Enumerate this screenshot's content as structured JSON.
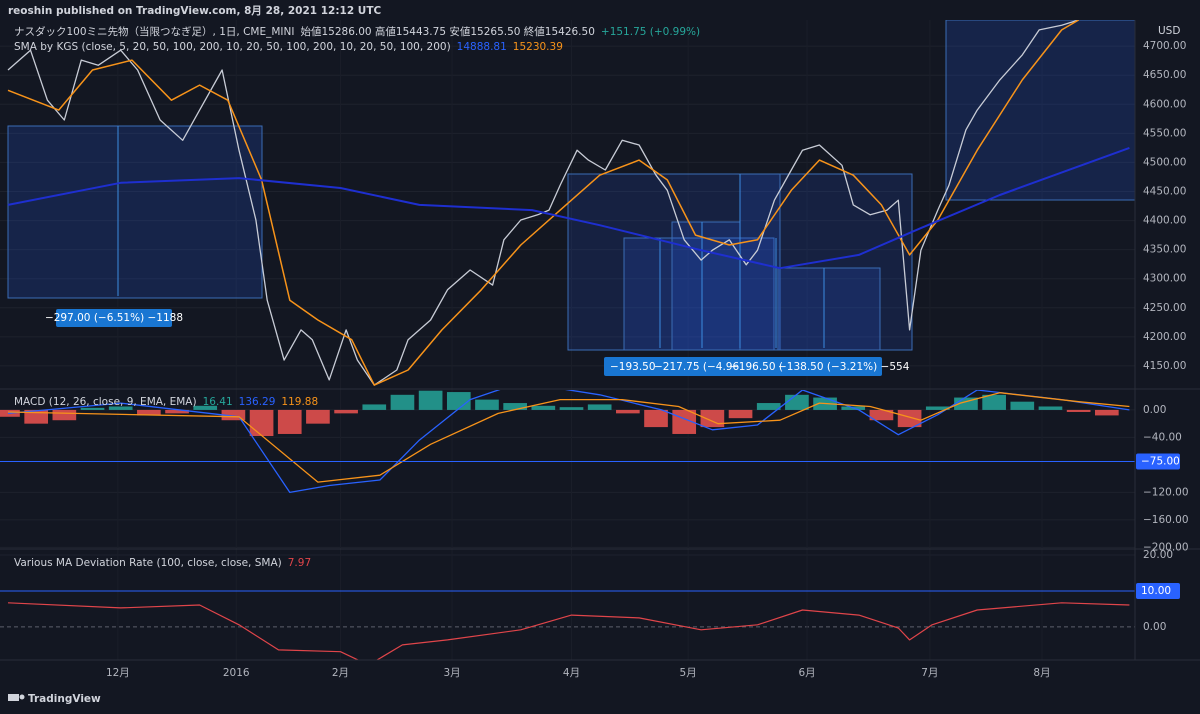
{
  "header": {
    "publisher": "reoshin published on TradingView.com, 8月 28, 2021 12:12 UTC",
    "footer": "TradingView"
  },
  "chart_data": [
    {
      "type": "line",
      "title": "ナスダック100ミニ先物（当限つなぎ足）, 1日, CME_MINI",
      "quote": "始値15286.00 高値15443.75 安値15265.50 終値15426.50",
      "change": "+151.75 (+0.99%)",
      "indicator": "SMA by KGS (close, 5, 20, 50, 100, 200, 10, 20, 50, 100, 200, 10, 20, 50, 100, 200)",
      "indicator_values": [
        "14888.81",
        "15230.39"
      ],
      "currency": "USD",
      "xlim": [
        0,
        200
      ],
      "ylim": [
        4112,
        4745
      ],
      "yticks": [
        {
          "value": 4150,
          "label": "4150.00"
        },
        {
          "value": 4200,
          "label": "4200.00"
        },
        {
          "value": 4250,
          "label": "4250.00"
        },
        {
          "value": 4300,
          "label": "4300.00"
        },
        {
          "value": 4350,
          "label": "4350.00"
        },
        {
          "value": 4400,
          "label": "4400.00"
        },
        {
          "value": 4450,
          "label": "4450.00"
        },
        {
          "value": 4500,
          "label": "4500.00"
        },
        {
          "value": 4550,
          "label": "4550.00"
        },
        {
          "value": 4600,
          "label": "4600.00"
        },
        {
          "value": 4650,
          "label": "4650.00"
        },
        {
          "value": 4700,
          "label": "4700.00"
        }
      ],
      "annotations": [
        "−297.00 (−6.51%) −1188",
        "−193.50",
        "−217.75 (−4.96",
        "−196.50 (",
        "−138.50 (−3.21%) −554"
      ],
      "series": [
        {
          "type": "line",
          "color": "#c8ccd6",
          "width": 1.3,
          "x": [
            0,
            4,
            7,
            10,
            13,
            16,
            20,
            23,
            27,
            31,
            34,
            38,
            41,
            44,
            46,
            49,
            52,
            54,
            57,
            60,
            62,
            65,
            69,
            71,
            75,
            78,
            82,
            86,
            88,
            91,
            94,
            96,
            98,
            101,
            103,
            106,
            109,
            112,
            115,
            117,
            120,
            123,
            125,
            128,
            131,
            133,
            136,
            139,
            141,
            144,
            148,
            150,
            153,
            156,
            158,
            160,
            162,
            165,
            167,
            170,
            172,
            176,
            180,
            183,
            187,
            190
          ],
          "values": [
            4659,
            4693,
            4607,
            4573,
            4676,
            4667,
            4693,
            4659,
            4573,
            4538,
            4590,
            4659,
            4521,
            4401,
            4263,
            4160,
            4212,
            4195,
            4126,
            4212,
            4160,
            4117,
            4143,
            4195,
            4229,
            4281,
            4315,
            4289,
            4367,
            4401,
            4410,
            4418,
            4461,
            4521,
            4504,
            4487,
            4538,
            4530,
            4478,
            4452,
            4367,
            4332,
            4349,
            4367,
            4324,
            4349,
            4435,
            4487,
            4521,
            4530,
            4495,
            4427,
            4410,
            4418,
            4435,
            4212,
            4349,
            4418,
            4461,
            4556,
            4590,
            4642,
            4685,
            4728,
            4736,
            4745
          ]
        },
        {
          "type": "line",
          "color": "#f7931a",
          "width": 1.5,
          "x": [
            0,
            9,
            15,
            22,
            29,
            34,
            39,
            45,
            50,
            55,
            61,
            65,
            71,
            77,
            84,
            91,
            98,
            105,
            112,
            117,
            122,
            128,
            133,
            139,
            144,
            150,
            155,
            160,
            165,
            172,
            180,
            187,
            190
          ],
          "values": [
            4624,
            4590,
            4659,
            4676,
            4607,
            4633,
            4607,
            4470,
            4263,
            4229,
            4195,
            4117,
            4143,
            4212,
            4281,
            4358,
            4418,
            4478,
            4504,
            4470,
            4375,
            4358,
            4367,
            4452,
            4504,
            4478,
            4427,
            4341,
            4401,
            4521,
            4642,
            4728,
            4745
          ]
        },
        {
          "type": "line",
          "color": "#1e2fd0",
          "width": 2,
          "x": [
            0,
            20,
            41,
            59,
            73,
            93,
            105,
            123,
            137,
            151,
            162,
            176,
            199
          ],
          "values": [
            4427,
            4465,
            4473,
            4456,
            4427,
            4418,
            4392,
            4349,
            4318,
            4341,
            4387,
            4444,
            4525
          ]
        }
      ]
    },
    {
      "type": "line",
      "title": "MACD (12, 26, close, 9, EMA, EMA)",
      "indicator_values": [
        "16.41",
        "136.29",
        "119.88"
      ],
      "xlim": [
        0,
        200
      ],
      "ylim": [
        -201,
        29
      ],
      "yticks": [
        {
          "value": 0,
          "label": "0.00"
        },
        {
          "value": -40,
          "label": "−40.00"
        },
        {
          "value": -120,
          "label": "−120.00"
        },
        {
          "value": -160,
          "label": "−160.00"
        },
        {
          "value": -200,
          "label": "−200.00"
        }
      ],
      "hlines": [
        {
          "value": -75,
          "label": "−75.00",
          "color": "#2962ff"
        }
      ],
      "series": [
        {
          "type": "bar",
          "color": "#26a69a",
          "negative_color": "#ef5350",
          "x": [
            0,
            5,
            10,
            15,
            20,
            25,
            30,
            35,
            40,
            45,
            50,
            55,
            60,
            65,
            70,
            75,
            80,
            85,
            90,
            95,
            100,
            105,
            110,
            115,
            120,
            125,
            130,
            135,
            140,
            145,
            150,
            155,
            160,
            165,
            170,
            175,
            180,
            185,
            190,
            195
          ],
          "values": [
            -10,
            -20,
            -15,
            3,
            5,
            -8,
            -5,
            6,
            -15,
            -38,
            -35,
            -20,
            -5,
            8,
            22,
            28,
            26,
            15,
            10,
            6,
            4,
            8,
            -5,
            -25,
            -35,
            -25,
            -12,
            10,
            22,
            18,
            5,
            -15,
            -25,
            5,
            18,
            22,
            12,
            5,
            -3,
            -8
          ]
        },
        {
          "type": "line",
          "color": "#2962ff",
          "width": 1.3,
          "x": [
            0,
            20,
            41,
            50,
            57,
            66,
            73,
            82,
            91,
            105,
            116,
            125,
            133,
            141,
            151,
            158,
            165,
            172,
            187,
            199
          ],
          "values": [
            -5,
            10,
            -10,
            -120,
            -110,
            -102,
            -44,
            15,
            40,
            22,
            0,
            -29,
            -22,
            29,
            0,
            -36,
            -7,
            29,
            15,
            0
          ]
        },
        {
          "type": "line",
          "color": "#f7931a",
          "width": 1.3,
          "x": [
            0,
            41,
            55,
            66,
            75,
            87,
            98,
            109,
            119,
            126,
            137,
            144,
            153,
            162,
            169,
            176,
            190,
            199
          ],
          "values": [
            -3,
            -10,
            -105,
            -95,
            -50,
            -5,
            15,
            15,
            5,
            -20,
            -15,
            10,
            5,
            -15,
            10,
            25,
            12,
            5
          ]
        }
      ]
    },
    {
      "type": "line",
      "title": "Various MA Deviation Rate (100, close, close, SMA)",
      "indicator_values": [
        "7.97"
      ],
      "xlim": [
        0,
        200
      ],
      "ylim": [
        -9.2,
        21.4
      ],
      "yticks": [
        {
          "value": 20,
          "label": "20.00"
        },
        {
          "value": 0,
          "label": "0.00"
        }
      ],
      "hlines": [
        {
          "value": 10,
          "label": "10.00",
          "color": "#2962ff"
        }
      ],
      "xticks": [
        {
          "value": 19.5,
          "label": "12月"
        },
        {
          "value": 40.5,
          "label": "2016"
        },
        {
          "value": 59,
          "label": "2月"
        },
        {
          "value": 78.8,
          "label": "3月"
        },
        {
          "value": 100,
          "label": "4月"
        },
        {
          "value": 120.7,
          "label": "5月"
        },
        {
          "value": 141.8,
          "label": "6月"
        },
        {
          "value": 163.6,
          "label": "7月"
        },
        {
          "value": 183.5,
          "label": "8月"
        }
      ],
      "series": [
        {
          "type": "line",
          "color": "#e0454a",
          "width": 1.2,
          "x": [
            0,
            20,
            34,
            41,
            48,
            59,
            64,
            70,
            78,
            91,
            100,
            112,
            123,
            133,
            141,
            151,
            158,
            160,
            164,
            172,
            187,
            199
          ],
          "values": [
            6.7,
            5.3,
            6.1,
            0.6,
            -6.4,
            -6.9,
            -10.6,
            -5,
            -3.6,
            -0.8,
            3.3,
            2.5,
            -0.8,
            0.6,
            4.7,
            3.3,
            -0.3,
            -3.6,
            0.6,
            4.7,
            6.7,
            6.1
          ]
        }
      ]
    }
  ]
}
